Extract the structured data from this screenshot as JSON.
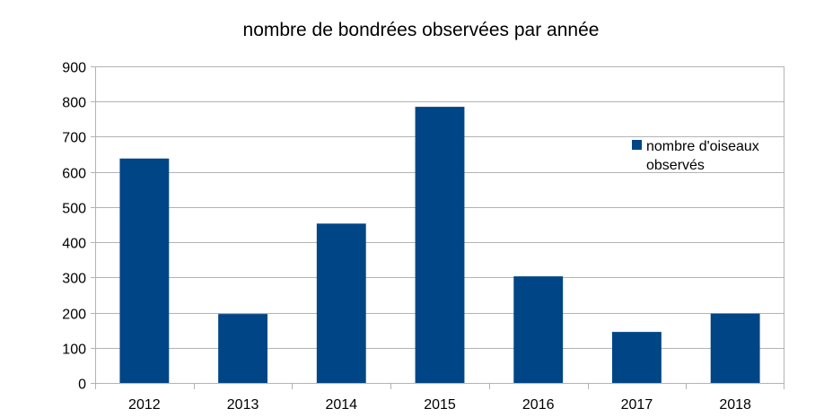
{
  "chart_data": {
    "type": "bar",
    "title": "nombre de bondrées observées par année",
    "xlabel": "",
    "ylabel": "",
    "categories": [
      "2012",
      "2013",
      "2014",
      "2015",
      "2016",
      "2017",
      "2018"
    ],
    "series": [
      {
        "name": "nombre d'oiseaux observés",
        "legend_lines": [
          "nombre d'oiseaux",
          "observés"
        ],
        "color": "#004586",
        "values": [
          638,
          196,
          453,
          785,
          303,
          145,
          197
        ]
      }
    ],
    "ylim": [
      0,
      900
    ],
    "yticks": [
      "0",
      "100",
      "200",
      "300",
      "400",
      "500",
      "600",
      "700",
      "800",
      "900"
    ],
    "grid": true,
    "legend_position": "right"
  }
}
